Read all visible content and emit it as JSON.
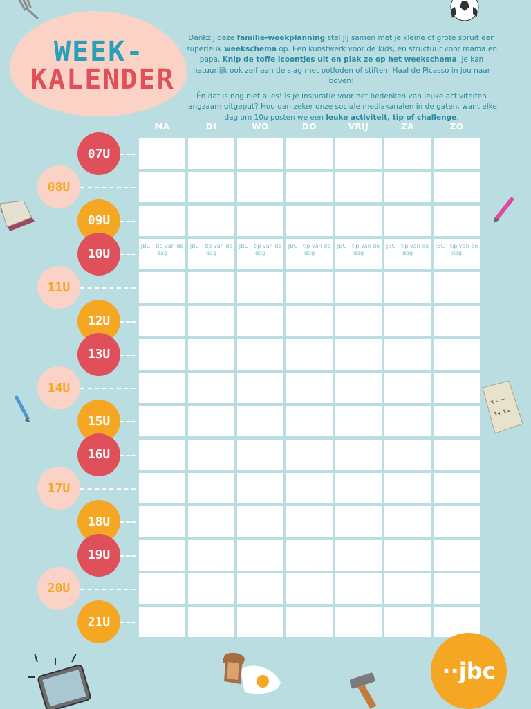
{
  "title": {
    "line1": "WEEK-",
    "line2": "KALENDER"
  },
  "intro": {
    "p1_a": "Dankzij deze ",
    "p1_b": "familie-weekplanning",
    "p1_c": " stel jij samen met je kleine of grote spruit een superleuk ",
    "p1_d": "weekschema",
    "p1_e": " op. Een kunstwerk voor de kids, en structuur voor mama en papa. ",
    "p1_f": "Knip de toffe icoontjes uit en plak ze op het weekschema",
    "p1_g": ". Je kan natuurlijk ook zelf aan de slag met potloden of stiften. Haal de Picasso in jou naar boven!",
    "p2_a": "Én dat is nog niet alles! Is je inspiratie voor het bedenken van leuke activiteiten langzaam uitgeput? Hou dan zeker onze sociale mediakanalen in de gaten, want elke dag om 10u posten we een ",
    "p2_b": "leuke activiteit, tip of challenge",
    "p2_c": "."
  },
  "days": [
    "MA",
    "DI",
    "WO",
    "DO",
    "VRIJ",
    "ZA",
    "ZO"
  ],
  "hours": [
    "07U",
    "08U",
    "09U",
    "10U",
    "11U",
    "12U",
    "13U",
    "14U",
    "15U",
    "16U",
    "17U",
    "18U",
    "19U",
    "20U",
    "21U"
  ],
  "tip_text": "JBC - tip van de dag",
  "logo": "··jbc",
  "colors": {
    "red": "#e0505a",
    "peach": "#fbd3c6",
    "orange": "#f5a623",
    "teal": "#2a9fb8"
  }
}
